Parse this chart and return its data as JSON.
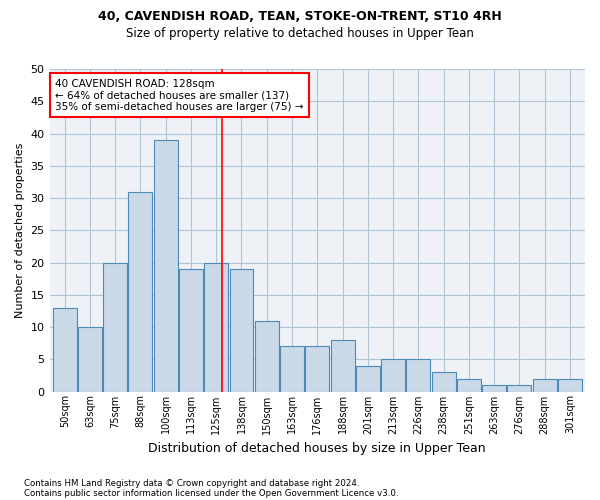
{
  "title1": "40, CAVENDISH ROAD, TEAN, STOKE-ON-TRENT, ST10 4RH",
  "title2": "Size of property relative to detached houses in Upper Tean",
  "xlabel": "Distribution of detached houses by size in Upper Tean",
  "ylabel": "Number of detached properties",
  "bar_labels": [
    "50sqm",
    "63sqm",
    "75sqm",
    "88sqm",
    "100sqm",
    "113sqm",
    "125sqm",
    "138sqm",
    "150sqm",
    "163sqm",
    "176sqm",
    "188sqm",
    "201sqm",
    "213sqm",
    "226sqm",
    "238sqm",
    "251sqm",
    "263sqm",
    "276sqm",
    "288sqm",
    "301sqm"
  ],
  "bar_values": [
    13,
    10,
    20,
    31,
    39,
    19,
    20,
    19,
    11,
    7,
    7,
    8,
    4,
    5,
    5,
    3,
    2,
    1,
    1,
    2,
    2
  ],
  "bar_color": "#c9d9e8",
  "bar_edge_color": "#4d8ab5",
  "annotation_text": "40 CAVENDISH ROAD: 128sqm\n← 64% of detached houses are smaller (137)\n35% of semi-detached houses are larger (75) →",
  "annotation_box_color": "white",
  "annotation_box_edge_color": "red",
  "ylim": [
    0,
    50
  ],
  "yticks": [
    0,
    5,
    10,
    15,
    20,
    25,
    30,
    35,
    40,
    45,
    50
  ],
  "grid_color": "#b0c4d4",
  "footnote1": "Contains HM Land Registry data © Crown copyright and database right 2024.",
  "footnote2": "Contains public sector information licensed under the Open Government Licence v3.0.",
  "bg_color": "#eef2f7"
}
